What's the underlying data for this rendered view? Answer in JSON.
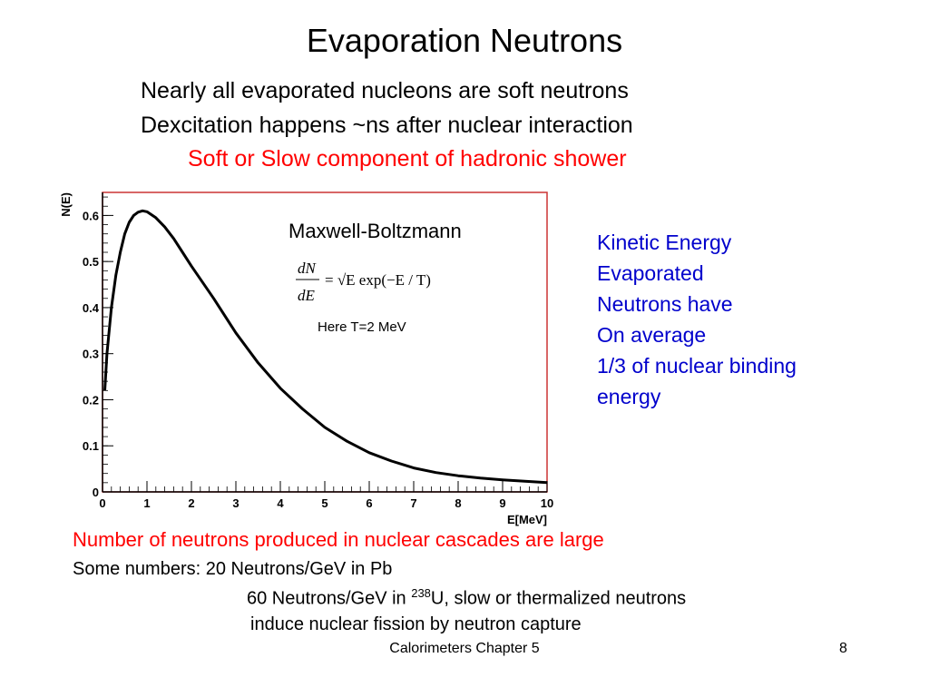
{
  "slide": {
    "title": "Evaporation Neutrons",
    "intro_lines": [
      "Nearly all evaporated nucleons are soft neutrons",
      "Dexcitation happens ~ns after nuclear interaction",
      "Soft or Slow component of hadronic shower"
    ],
    "side_text": [
      "Kinetic Energy",
      "Evaporated",
      "Neutrons have",
      "On average",
      "1/3 of nuclear binding",
      "energy"
    ],
    "bottom_line1": "Number of neutrons produced in nuclear cascades are large",
    "bottom_line2": "Some numbers: 20 Neutrons/GeV in Pb",
    "bottom_line3_pre": "60 Neutrons/GeV in ",
    "bottom_line3_sup": "238",
    "bottom_line3_post": "U, slow or thermalized neutrons",
    "bottom_line4": "induce nuclear fission by neutron capture",
    "footer": "Calorimeters Chapter 5",
    "page_number": "8",
    "colors": {
      "red": "#ff0000",
      "blue": "#0000cc",
      "frame": "#cc3333"
    }
  },
  "chart_data": {
    "type": "line",
    "xlabel": "E[MeV]",
    "ylabel": "N(E)",
    "xlim": [
      0,
      10
    ],
    "ylim": [
      0,
      0.65
    ],
    "x_ticks": [
      "0",
      "1",
      "2",
      "3",
      "4",
      "5",
      "6",
      "7",
      "8",
      "9",
      "10"
    ],
    "y_ticks": [
      "0",
      "0.1",
      "0.2",
      "0.3",
      "0.4",
      "0.5",
      "0.6"
    ],
    "series": [
      {
        "x": [
          0.05,
          0.1,
          0.2,
          0.3,
          0.4,
          0.5,
          0.6,
          0.7,
          0.8,
          0.9,
          1.0,
          1.2,
          1.4,
          1.6,
          1.8,
          2.0,
          2.5,
          3.0,
          3.5,
          4.0,
          4.5,
          5.0,
          5.5,
          6.0,
          6.5,
          7.0,
          7.5,
          8.0,
          8.5,
          9.0,
          9.5,
          10.0
        ],
        "y": [
          0.22,
          0.3,
          0.4,
          0.47,
          0.52,
          0.56,
          0.585,
          0.6,
          0.607,
          0.61,
          0.608,
          0.595,
          0.575,
          0.55,
          0.52,
          0.49,
          0.42,
          0.345,
          0.28,
          0.225,
          0.18,
          0.14,
          0.11,
          0.085,
          0.067,
          0.052,
          0.042,
          0.035,
          0.03,
          0.026,
          0.023,
          0.02
        ]
      }
    ],
    "annotations": {
      "model_label": "Maxwell-Boltzmann",
      "formula_lhs_num": "dN",
      "formula_lhs_den": "dE",
      "formula_rhs": "= √E exp(−E / T)",
      "note": "Here T=2 MeV"
    }
  }
}
